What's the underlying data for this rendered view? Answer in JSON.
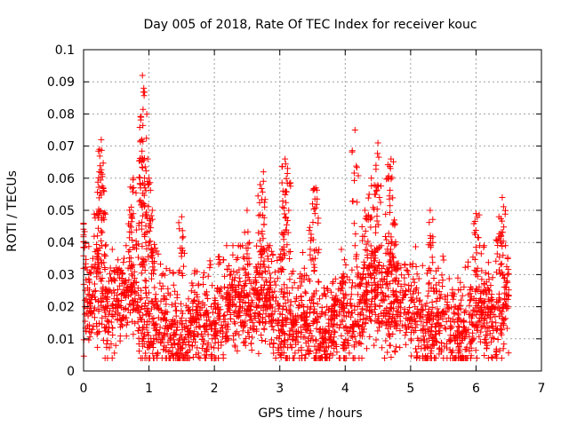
{
  "chart_data": {
    "type": "scatter",
    "title": "Day 005 of 2018, Rate Of TEC Index for receiver kouc",
    "xlabel": "GPS time / hours",
    "ylabel": "ROTI / TECUs",
    "xlim": [
      0,
      7
    ],
    "ylim": [
      0,
      0.1
    ],
    "xticks": [
      0,
      1,
      2,
      3,
      4,
      5,
      6,
      7
    ],
    "yticks": [
      0,
      0.01,
      0.02,
      0.03,
      0.04,
      0.05,
      0.06,
      0.07,
      0.08,
      0.09,
      0.1
    ],
    "xtick_labels": [
      "0",
      "1",
      "2",
      "3",
      "4",
      "5",
      "6",
      "7"
    ],
    "ytick_labels": [
      "0",
      "0.01",
      "0.02",
      "0.03",
      "0.04",
      "0.05",
      "0.06",
      "0.07",
      "0.08",
      "0.09",
      "0.1"
    ],
    "grid": true,
    "marker": "+",
    "series": [
      {
        "name": "ROTI",
        "color": "#ff0000",
        "x_range": [
          0.0,
          6.5
        ],
        "typical_range": [
          0.005,
          0.035
        ],
        "peaks": [
          {
            "x": 0.0,
            "y": 0.046
          },
          {
            "x": 0.27,
            "y": 0.072
          },
          {
            "x": 0.24,
            "y": 0.062
          },
          {
            "x": 0.3,
            "y": 0.057
          },
          {
            "x": 0.2,
            "y": 0.049
          },
          {
            "x": 0.76,
            "y": 0.06
          },
          {
            "x": 0.73,
            "y": 0.051
          },
          {
            "x": 0.9,
            "y": 0.092
          },
          {
            "x": 0.92,
            "y": 0.088
          },
          {
            "x": 0.88,
            "y": 0.079
          },
          {
            "x": 0.89,
            "y": 0.072
          },
          {
            "x": 0.98,
            "y": 0.066
          },
          {
            "x": 1.0,
            "y": 0.06
          },
          {
            "x": 1.05,
            "y": 0.05
          },
          {
            "x": 1.5,
            "y": 0.048
          },
          {
            "x": 2.5,
            "y": 0.05
          },
          {
            "x": 2.75,
            "y": 0.062
          },
          {
            "x": 2.7,
            "y": 0.058
          },
          {
            "x": 3.08,
            "y": 0.066
          },
          {
            "x": 3.12,
            "y": 0.063
          },
          {
            "x": 3.05,
            "y": 0.056
          },
          {
            "x": 3.55,
            "y": 0.057
          },
          {
            "x": 3.5,
            "y": 0.052
          },
          {
            "x": 4.15,
            "y": 0.075
          },
          {
            "x": 4.5,
            "y": 0.071
          },
          {
            "x": 4.47,
            "y": 0.064
          },
          {
            "x": 4.4,
            "y": 0.06
          },
          {
            "x": 4.7,
            "y": 0.066
          },
          {
            "x": 4.65,
            "y": 0.06
          },
          {
            "x": 4.3,
            "y": 0.05
          },
          {
            "x": 4.75,
            "y": 0.047
          },
          {
            "x": 5.3,
            "y": 0.05
          },
          {
            "x": 6.0,
            "y": 0.049
          },
          {
            "x": 6.4,
            "y": 0.054
          },
          {
            "x": 6.35,
            "y": 0.048
          }
        ]
      }
    ]
  }
}
